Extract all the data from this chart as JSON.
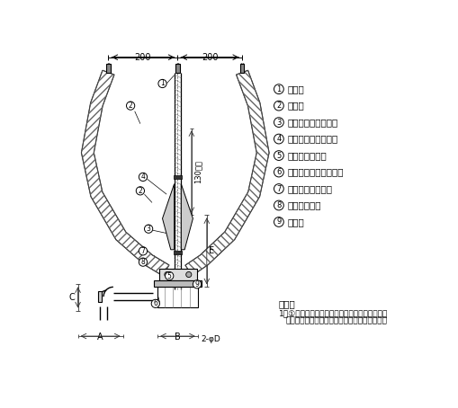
{
  "bg_color": "#ffffff",
  "line_color": "#000000",
  "legend_items": [
    {
      "num": "1",
      "text": "端　子"
    },
    {
      "num": "2",
      "text": "保護層"
    },
    {
      "num": "3",
      "text": "半導電性融着テープ"
    },
    {
      "num": "4",
      "text": "ゴムストレスコーン"
    },
    {
      "num": "5",
      "text": "ゴムスペーサー"
    },
    {
      "num": "6",
      "text": "ケーブル用ブラケット"
    },
    {
      "num": "7",
      "text": "すずめっき軟銅線"
    },
    {
      "num": "8",
      "text": "相色別テープ"
    },
    {
      "num": "9",
      "text": "銘　板"
    }
  ],
  "note_title": "備考：",
  "note_line1": "1）①保護層は、粘着性ポリエチレン絶縁テープ",
  "note_line2": "または自己融着性絶縁テープおよび保護テープ",
  "dim_200_left": "200",
  "dim_200_right": "200",
  "dim_130": "130以上",
  "dim_E": "E",
  "dim_A": "A",
  "dim_B": "B",
  "dim_C": "C",
  "dim_2phiD": "2-φD"
}
